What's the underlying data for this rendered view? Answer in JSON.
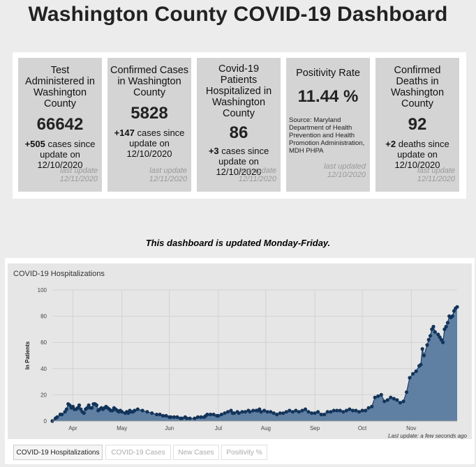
{
  "page": {
    "title": "Washington County COVID-19 Dashboard",
    "notice": "This dashboard is updated Monday-Friday."
  },
  "cards": [
    {
      "title": "Test Administered in Washington County",
      "value": "66642",
      "change_num": "+505",
      "change_text": " cases since update on 12/10/2020",
      "last_update": "last update",
      "update_date": "12/11/2020"
    },
    {
      "title": "Confirmed Cases in Washington County",
      "value": "5828",
      "change_num": "+147",
      "change_text": " cases since update on 12/10/2020",
      "last_update": "last update",
      "update_date": "12/11/2020"
    },
    {
      "title": "Covid-19 Patients Hospitalized in Washington County",
      "value": "86",
      "change_num": "+3",
      "change_text": " cases since update on 12/10/2020",
      "last_update": "last update",
      "update_date": "12/11/2020"
    },
    {
      "title": "Positivity Rate",
      "value": "11.44 %",
      "source": "Source: Maryland Department of Health Prevention and Health Promotion Administration, MDH PHPA",
      "last_update": "last updated",
      "update_date": "12/10/2020"
    },
    {
      "title": "Confirmed Deaths in Washington County",
      "value": "92",
      "change_num": "+2",
      "change_text": " deaths since update on 12/10/2020",
      "last_update": "last update",
      "update_date": "12/11/2020"
    }
  ],
  "tabs": [
    {
      "label": "COVID-19 Hospitalizations",
      "active": true
    },
    {
      "label": "COVID-19 Cases",
      "active": false
    },
    {
      "label": "New Cases",
      "active": false
    },
    {
      "label": "Positivity %",
      "active": false
    }
  ],
  "colors": {
    "fill": "#577a9f",
    "line": "#1f3c5e",
    "point": "#13345a"
  },
  "chart_data": {
    "type": "area",
    "title": "COVID-19 Hospitalizations",
    "xlabel": "",
    "ylabel": "In Patients",
    "ylim": [
      0,
      100
    ],
    "yticks": [
      0,
      20,
      40,
      60,
      80,
      100
    ],
    "x_ticks": [
      "Apr",
      "May",
      "Jun",
      "Jul",
      "Aug",
      "Sep",
      "Oct",
      "Nov"
    ],
    "x_tick_days": [
      13,
      44,
      74,
      105,
      135,
      166,
      196,
      227
    ],
    "footer": "Last update: a few seconds ago",
    "series": [
      {
        "name": "In Patients",
        "points": [
          [
            0,
            0
          ],
          [
            2,
            2
          ],
          [
            3,
            3
          ],
          [
            5,
            5
          ],
          [
            6,
            5
          ],
          [
            8,
            7
          ],
          [
            9,
            9
          ],
          [
            10,
            13
          ],
          [
            11,
            12
          ],
          [
            12,
            10
          ],
          [
            13,
            11
          ],
          [
            14,
            9
          ],
          [
            15,
            9
          ],
          [
            16,
            10
          ],
          [
            17,
            12
          ],
          [
            18,
            9
          ],
          [
            19,
            7
          ],
          [
            20,
            6
          ],
          [
            21,
            9
          ],
          [
            22,
            10
          ],
          [
            23,
            12
          ],
          [
            24,
            10
          ],
          [
            25,
            10
          ],
          [
            26,
            13
          ],
          [
            27,
            13
          ],
          [
            28,
            12
          ],
          [
            29,
            8
          ],
          [
            30,
            9
          ],
          [
            31,
            10
          ],
          [
            32,
            9
          ],
          [
            33,
            10
          ],
          [
            34,
            11
          ],
          [
            35,
            10
          ],
          [
            36,
            9
          ],
          [
            37,
            8
          ],
          [
            38,
            8
          ],
          [
            39,
            10
          ],
          [
            40,
            9
          ],
          [
            41,
            8
          ],
          [
            42,
            7
          ],
          [
            43,
            8
          ],
          [
            44,
            7
          ],
          [
            46,
            6
          ],
          [
            47,
            7
          ],
          [
            48,
            6
          ],
          [
            49,
            8
          ],
          [
            50,
            7
          ],
          [
            51,
            7
          ],
          [
            52,
            8
          ],
          [
            54,
            9
          ],
          [
            57,
            8
          ],
          [
            60,
            7
          ],
          [
            63,
            6
          ],
          [
            66,
            5
          ],
          [
            68,
            5
          ],
          [
            70,
            4
          ],
          [
            72,
            4
          ],
          [
            74,
            3
          ],
          [
            75,
            3
          ],
          [
            77,
            3
          ],
          [
            79,
            3
          ],
          [
            81,
            2
          ],
          [
            82,
            2
          ],
          [
            84,
            3
          ],
          [
            85,
            2
          ],
          [
            87,
            2
          ],
          [
            90,
            2
          ],
          [
            92,
            3
          ],
          [
            94,
            3
          ],
          [
            96,
            3
          ],
          [
            97,
            4
          ],
          [
            98,
            5
          ],
          [
            100,
            5
          ],
          [
            102,
            5
          ],
          [
            104,
            4
          ],
          [
            105,
            4
          ],
          [
            107,
            5
          ],
          [
            109,
            6
          ],
          [
            111,
            7
          ],
          [
            113,
            8
          ],
          [
            114,
            6
          ],
          [
            115,
            6
          ],
          [
            117,
            7
          ],
          [
            118,
            6
          ],
          [
            120,
            7
          ],
          [
            122,
            7
          ],
          [
            124,
            8
          ],
          [
            125,
            7
          ],
          [
            127,
            8
          ],
          [
            129,
            8
          ],
          [
            130,
            8
          ],
          [
            131,
            9
          ],
          [
            132,
            7
          ],
          [
            134,
            8
          ],
          [
            136,
            7
          ],
          [
            138,
            7
          ],
          [
            140,
            6
          ],
          [
            142,
            5
          ],
          [
            144,
            6
          ],
          [
            146,
            6
          ],
          [
            148,
            7
          ],
          [
            150,
            8
          ],
          [
            152,
            7
          ],
          [
            154,
            8
          ],
          [
            156,
            7
          ],
          [
            158,
            8
          ],
          [
            160,
            9
          ],
          [
            162,
            7
          ],
          [
            164,
            6
          ],
          [
            166,
            6
          ],
          [
            168,
            7
          ],
          [
            170,
            5
          ],
          [
            172,
            5
          ],
          [
            174,
            7
          ],
          [
            176,
            7
          ],
          [
            178,
            8
          ],
          [
            180,
            8
          ],
          [
            182,
            8
          ],
          [
            184,
            7
          ],
          [
            186,
            8
          ],
          [
            188,
            9
          ],
          [
            190,
            8
          ],
          [
            192,
            8
          ],
          [
            194,
            7
          ],
          [
            196,
            8
          ],
          [
            198,
            8
          ],
          [
            200,
            10
          ],
          [
            202,
            11
          ],
          [
            204,
            18
          ],
          [
            206,
            19
          ],
          [
            208,
            20
          ],
          [
            210,
            15
          ],
          [
            212,
            16
          ],
          [
            214,
            18
          ],
          [
            216,
            17
          ],
          [
            218,
            16
          ],
          [
            220,
            14
          ],
          [
            222,
            15
          ],
          [
            224,
            22
          ],
          [
            226,
            33
          ],
          [
            228,
            36
          ],
          [
            230,
            38
          ],
          [
            232,
            42
          ],
          [
            233,
            43
          ],
          [
            234,
            55
          ],
          [
            235,
            50
          ],
          [
            237,
            58
          ],
          [
            238,
            62
          ],
          [
            239,
            65
          ],
          [
            240,
            70
          ],
          [
            241,
            72
          ],
          [
            242,
            68
          ],
          [
            244,
            66
          ],
          [
            245,
            64
          ],
          [
            246,
            62
          ],
          [
            247,
            60
          ],
          [
            248,
            70
          ],
          [
            249,
            72
          ],
          [
            250,
            75
          ],
          [
            251,
            80
          ],
          [
            252,
            79
          ],
          [
            253,
            80
          ],
          [
            254,
            84
          ],
          [
            255,
            86
          ],
          [
            256,
            87
          ]
        ]
      }
    ]
  }
}
